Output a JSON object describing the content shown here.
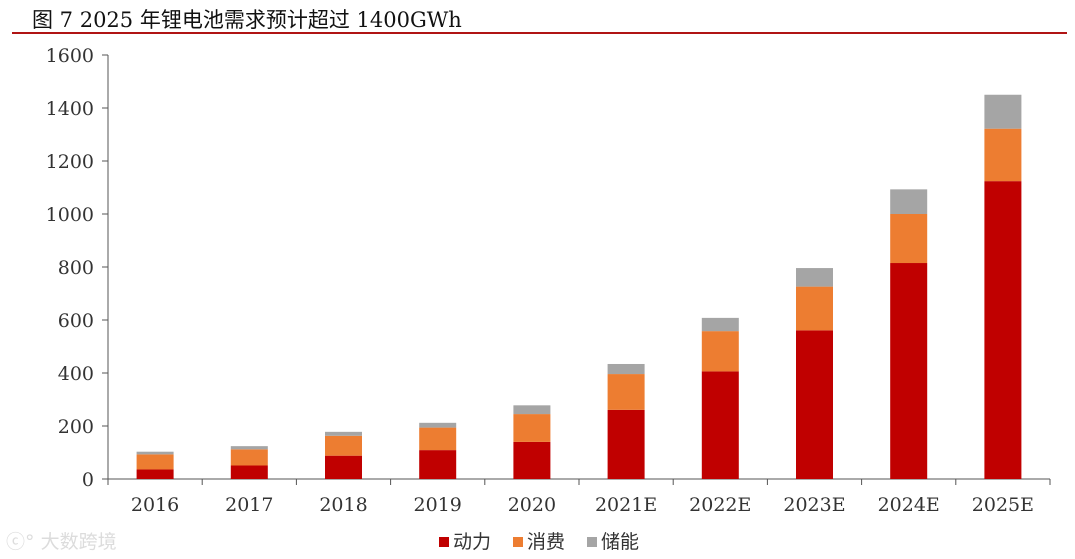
{
  "figure": {
    "title": "图  7 2025 年锂电池需求预计超过 1400GWh",
    "watermark": "大数跨境"
  },
  "colors": {
    "title_rule": "#b01414",
    "axis": "#555555",
    "tick_text": "#333333"
  },
  "chart_data": {
    "type": "bar",
    "stacked": true,
    "categories": [
      "2016",
      "2017",
      "2018",
      "2019",
      "2020",
      "2021E",
      "2022E",
      "2023E",
      "2024E",
      "2025E"
    ],
    "series": [
      {
        "name": "动力",
        "color": "#c00000",
        "values": [
          36,
          51,
          88,
          109,
          140,
          261,
          406,
          561,
          815,
          1124
        ]
      },
      {
        "name": "消费",
        "color": "#ed7d31",
        "values": [
          57,
          61,
          75,
          85,
          105,
          135,
          152,
          165,
          185,
          198
        ]
      },
      {
        "name": "储能",
        "color": "#a5a5a5",
        "values": [
          10,
          12,
          15,
          18,
          33,
          38,
          50,
          70,
          93,
          128
        ]
      }
    ],
    "ylim": [
      0,
      1600
    ],
    "yticks": [
      0,
      200,
      400,
      600,
      800,
      1000,
      1200,
      1400,
      1600
    ],
    "grid": false,
    "legend": "bottom"
  }
}
